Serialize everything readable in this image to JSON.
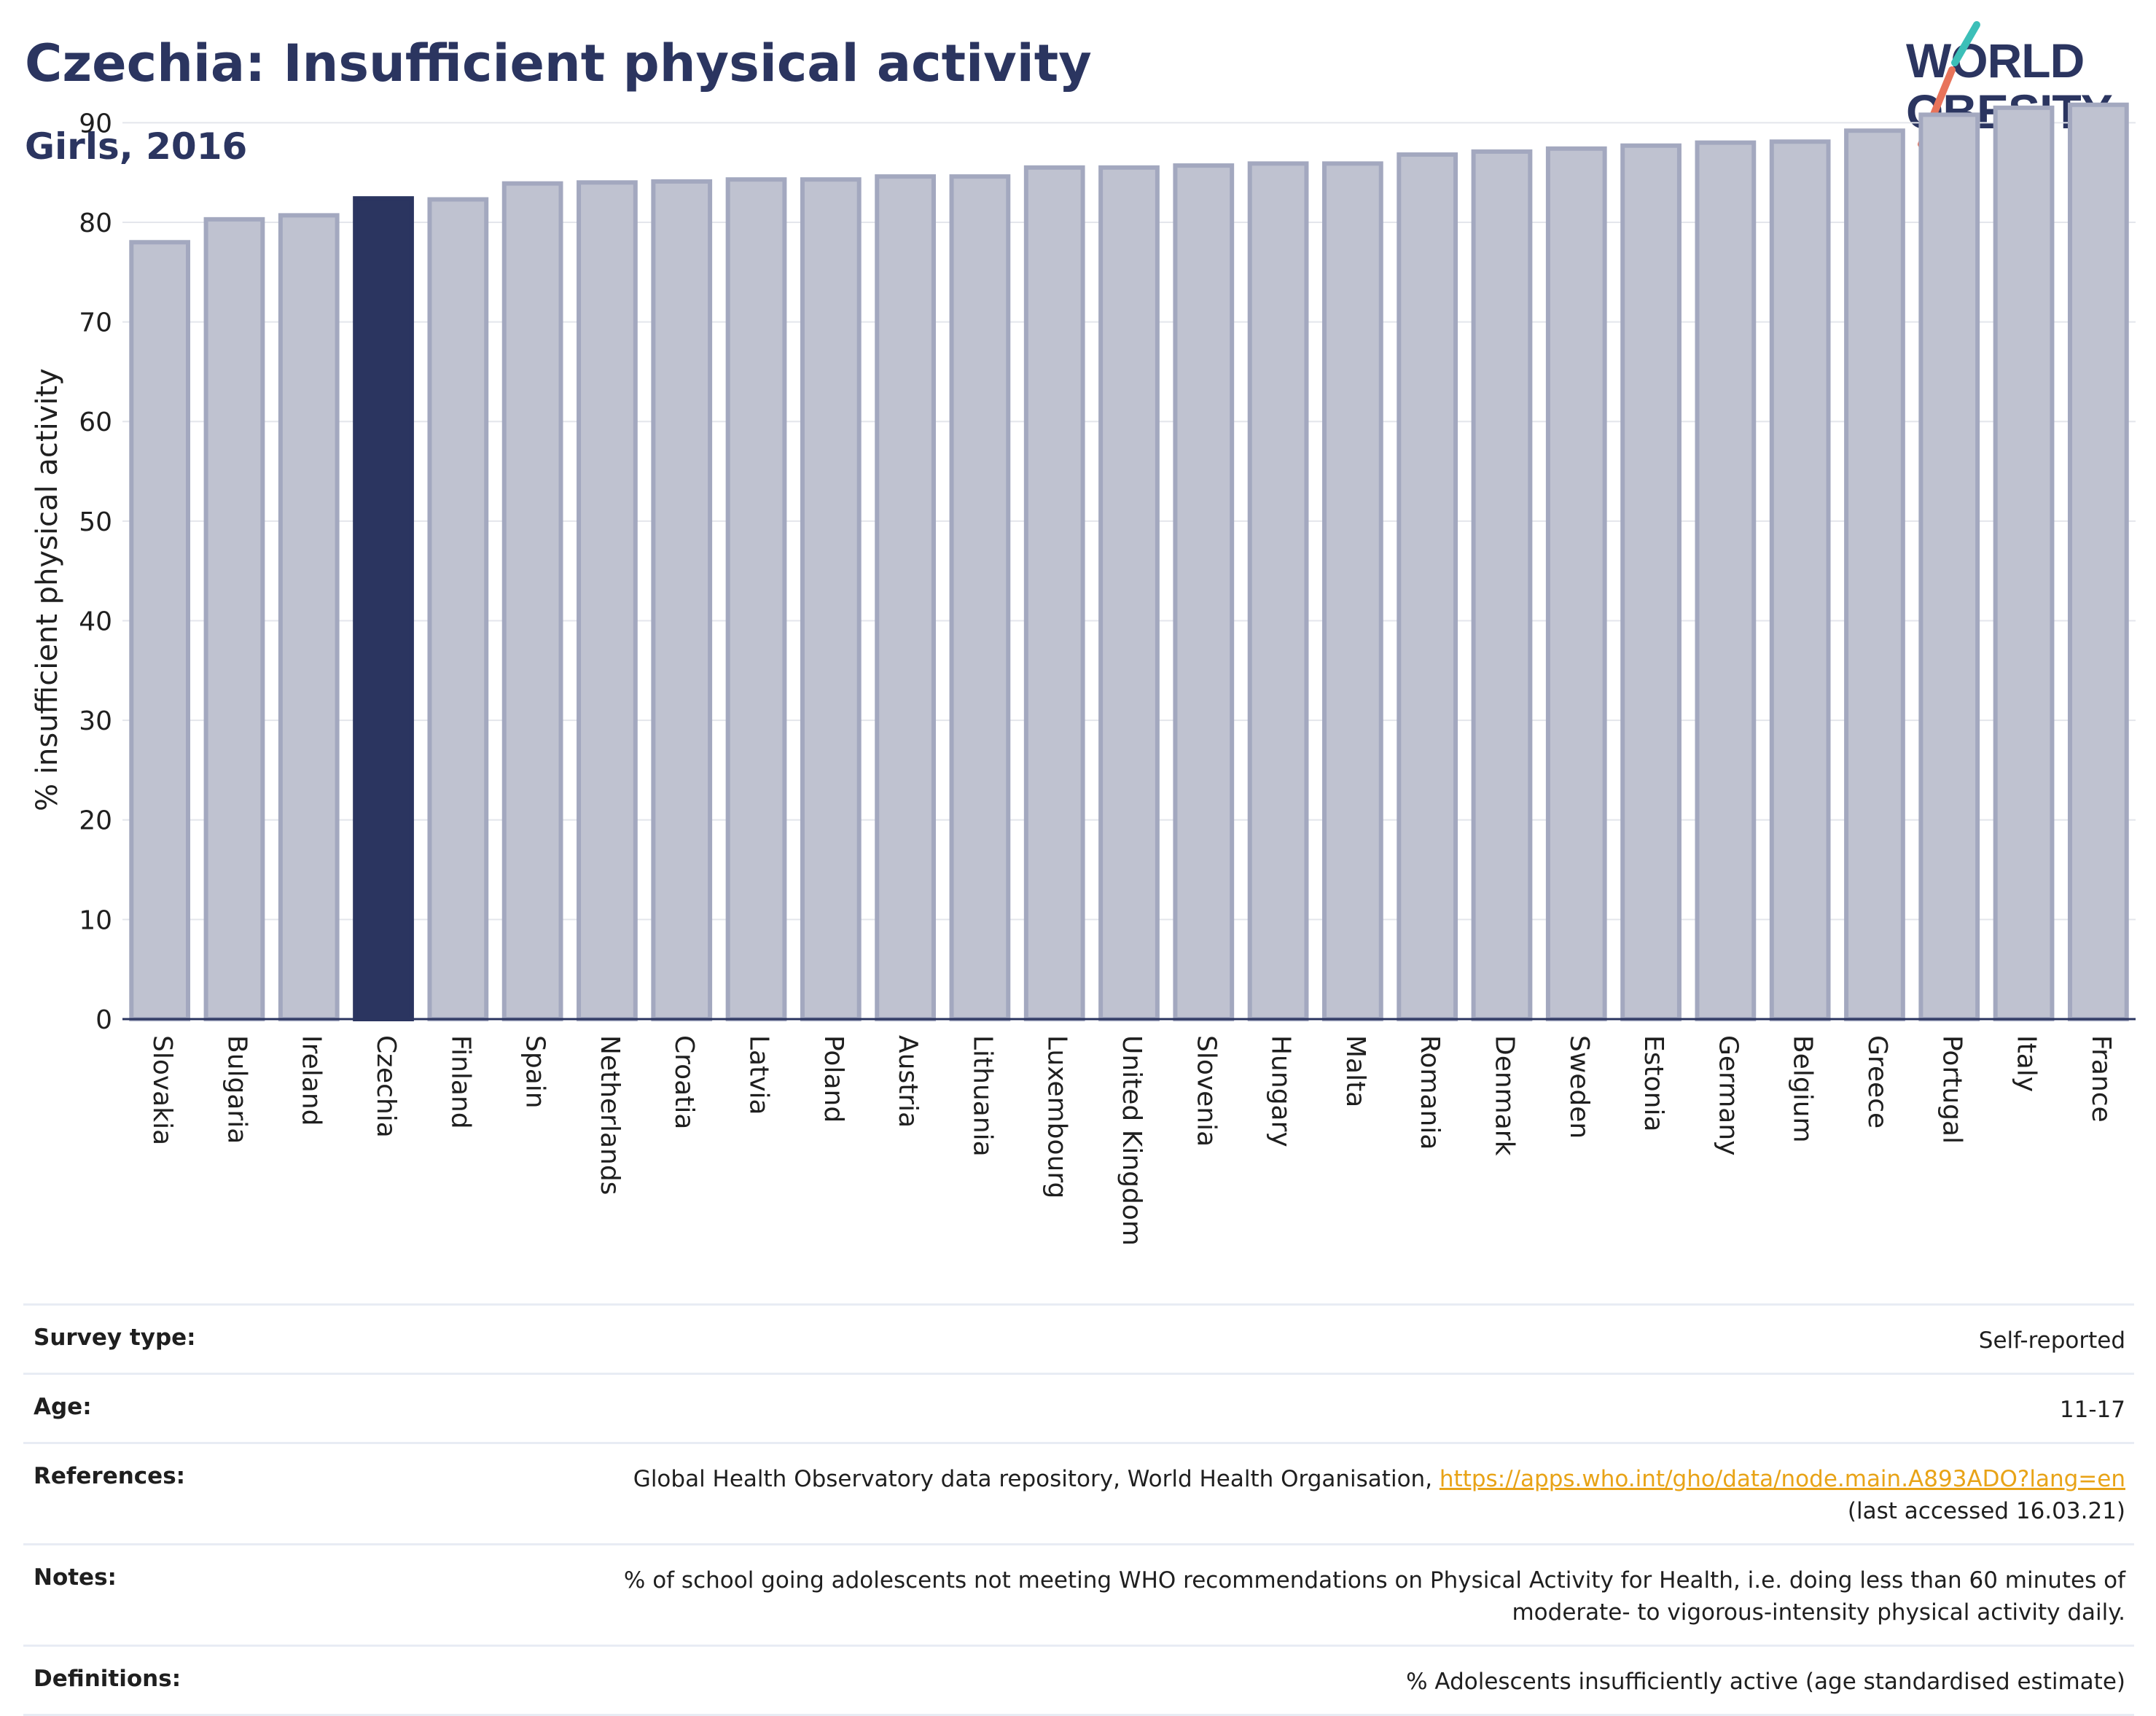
{
  "header": {
    "title": "Czechia: Insufficient physical activity",
    "subtitle": "Girls, 2016"
  },
  "logo": {
    "line1": "WORLD",
    "line2": "OBESITY"
  },
  "chart_data": {
    "type": "bar",
    "ylabel": "% insufficient physical activity",
    "xlabel": "",
    "ylim": [
      0,
      95
    ],
    "yticks": [
      0,
      10,
      20,
      30,
      40,
      50,
      60,
      70,
      80,
      90
    ],
    "grid": true,
    "highlight": "Czechia",
    "colors": {
      "bar": "#bfc2d0",
      "bar_edge": "#a3a8bf",
      "highlight": "#2b3560"
    },
    "categories": [
      "Slovakia",
      "Bulgaria",
      "Ireland",
      "Czechia",
      "Finland",
      "Spain",
      "Netherlands",
      "Croatia",
      "Latvia",
      "Poland",
      "Austria",
      "Lithuania",
      "Luxembourg",
      "United Kingdom",
      "Slovenia",
      "Hungary",
      "Malta",
      "Romania",
      "Denmark",
      "Sweden",
      "Estonia",
      "Germany",
      "Belgium",
      "Greece",
      "Portugal",
      "Italy",
      "France"
    ],
    "values": [
      78.0,
      80.3,
      80.7,
      82.4,
      82.3,
      83.9,
      84.0,
      84.1,
      84.3,
      84.3,
      84.6,
      84.6,
      85.5,
      85.5,
      85.7,
      85.9,
      85.9,
      86.8,
      87.1,
      87.4,
      87.7,
      88.0,
      88.1,
      89.2,
      90.8,
      91.5,
      91.8
    ]
  },
  "meta": {
    "survey_label": "Survey type:",
    "survey_value": "Self-reported",
    "age_label": "Age:",
    "age_value": "11-17",
    "references_label": "References:",
    "references_text": "Global Health Observatory data repository, World Health Organisation, ",
    "references_link": "https://apps.who.int/gho/data/node.main.A893ADO?lang=en",
    "references_accessed": "(last accessed 16.03.21)",
    "notes_label": "Notes:",
    "notes_value": "% of school going adolescents not meeting WHO recommendations on Physical Activity for Health, i.e. doing less than 60 minutes of moderate- to vigorous-intensity physical activity daily.",
    "definitions_label": "Definitions:",
    "definitions_value": "% Adolescents insufficiently active (age standardised estimate)"
  }
}
